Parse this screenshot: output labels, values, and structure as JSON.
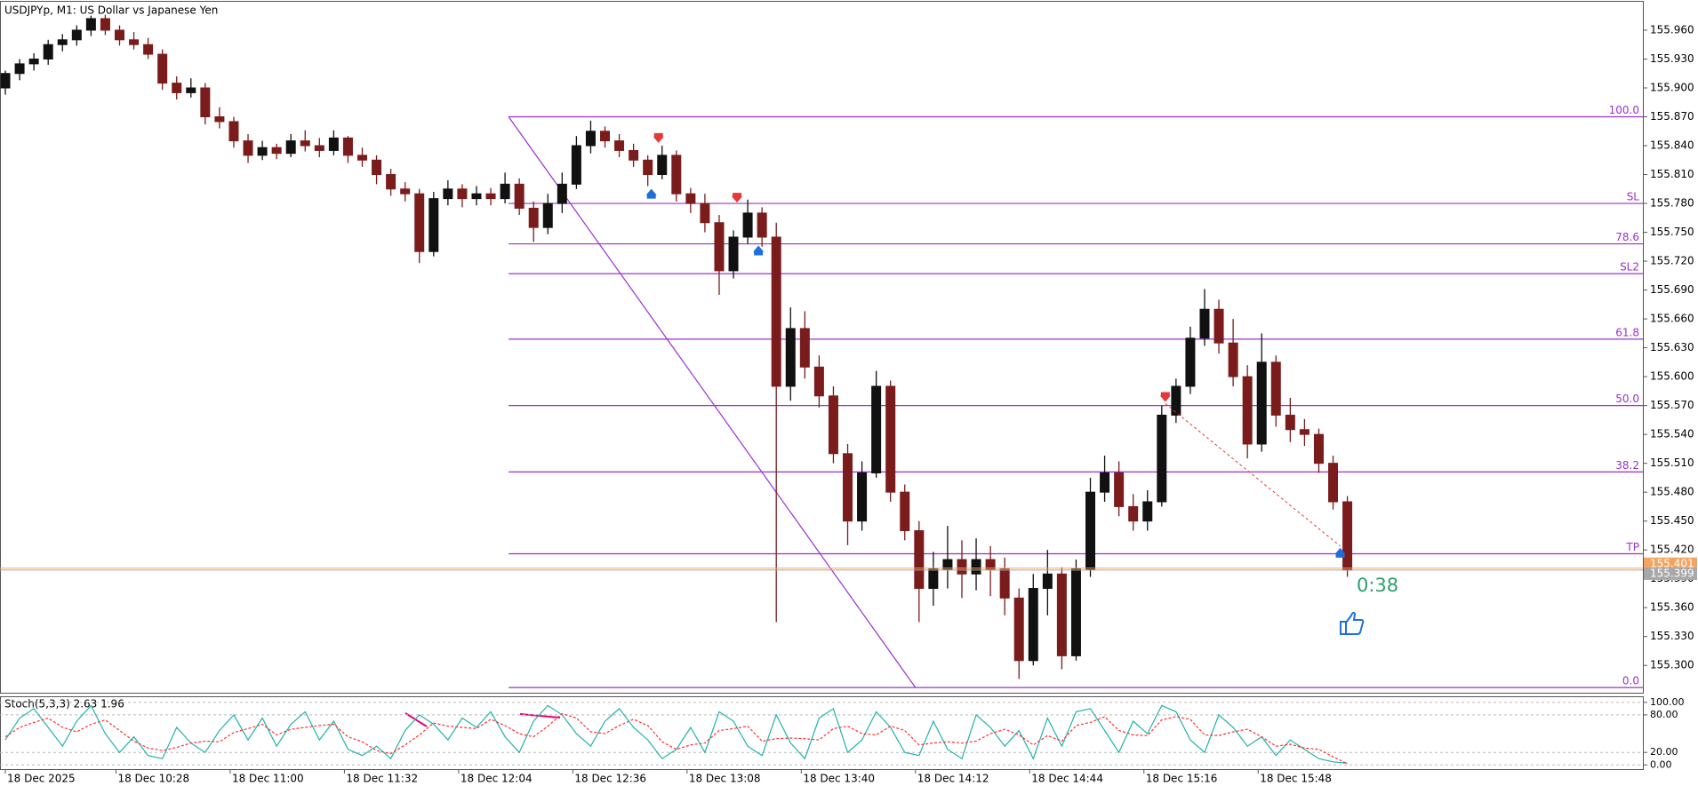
{
  "chart_data": {
    "type": "candlestick",
    "title": "USDJPYp, M1:  US Dollar vs Japanese Yen",
    "countdown": "0:38",
    "up_color": "#111111",
    "down_color": "#7a1c1c",
    "grid": false,
    "xlim": [
      -1.5,
      458.8
    ],
    "ylim": [
      155.2716,
      155.9895
    ],
    "xticks": [
      {
        "value": 0,
        "label": "18 Dec 2025"
      },
      {
        "value": 31,
        "label": "18 Dec 10:28"
      },
      {
        "value": 63,
        "label": "18 Dec 11:00"
      },
      {
        "value": 95,
        "label": "18 Dec 11:32"
      },
      {
        "value": 127,
        "label": "18 Dec 12:04"
      },
      {
        "value": 159,
        "label": "18 Dec 12:36"
      },
      {
        "value": 191,
        "label": "18 Dec 13:08"
      },
      {
        "value": 223,
        "label": "18 Dec 13:40"
      },
      {
        "value": 255,
        "label": "18 Dec 14:12"
      },
      {
        "value": 287,
        "label": "18 Dec 14:44"
      },
      {
        "value": 319,
        "label": "18 Dec 15:16"
      },
      {
        "value": 351,
        "label": "18 Dec 15:48"
      }
    ],
    "yticks": [
      {
        "value": 155.96,
        "label": "155.960"
      },
      {
        "value": 155.93,
        "label": "155.930"
      },
      {
        "value": 155.9,
        "label": "155.900"
      },
      {
        "value": 155.87,
        "label": "155.870"
      },
      {
        "value": 155.84,
        "label": "155.840"
      },
      {
        "value": 155.81,
        "label": "155.810"
      },
      {
        "value": 155.78,
        "label": "155.780"
      },
      {
        "value": 155.75,
        "label": "155.750"
      },
      {
        "value": 155.72,
        "label": "155.720"
      },
      {
        "value": 155.69,
        "label": "155.690"
      },
      {
        "value": 155.66,
        "label": "155.660"
      },
      {
        "value": 155.63,
        "label": "155.630"
      },
      {
        "value": 155.6,
        "label": "155.600"
      },
      {
        "value": 155.57,
        "label": "155.570"
      },
      {
        "value": 155.54,
        "label": "155.540"
      },
      {
        "value": 155.51,
        "label": "155.510"
      },
      {
        "value": 155.48,
        "label": "155.480"
      },
      {
        "value": 155.45,
        "label": "155.450"
      },
      {
        "value": 155.42,
        "label": "155.420"
      },
      {
        "value": 155.39,
        "label": "155.390"
      },
      {
        "value": 155.36,
        "label": "155.360"
      },
      {
        "value": 155.33,
        "label": "155.330"
      },
      {
        "value": 155.3,
        "label": "155.300"
      }
    ],
    "x": [
      0,
      4,
      8,
      12,
      16,
      20,
      24,
      28,
      32,
      36,
      40,
      44,
      48,
      52,
      56,
      60,
      64,
      68,
      72,
      76,
      80,
      84,
      88,
      92,
      96,
      100,
      104,
      108,
      112,
      116,
      120,
      124,
      128,
      132,
      136,
      140,
      144,
      148,
      152,
      156,
      160,
      164,
      168,
      172,
      176,
      180,
      184,
      188,
      192,
      196,
      200,
      204,
      208,
      212,
      216,
      220,
      224,
      228,
      232,
      236,
      240,
      244,
      248,
      252,
      256,
      260,
      264,
      268,
      272,
      276,
      280,
      284,
      288,
      292,
      296,
      300,
      304,
      308,
      312,
      316,
      320,
      324,
      328,
      332,
      336,
      340,
      344,
      348,
      352,
      356,
      360,
      364,
      368,
      372,
      376
    ],
    "ohlc": [
      [
        155.9,
        155.918,
        155.893,
        155.915
      ],
      [
        155.915,
        155.93,
        155.908,
        155.925
      ],
      [
        155.925,
        155.936,
        155.918,
        155.93
      ],
      [
        155.93,
        155.95,
        155.924,
        155.945
      ],
      [
        155.945,
        155.956,
        155.938,
        155.95
      ],
      [
        155.95,
        155.965,
        155.944,
        155.96
      ],
      [
        155.96,
        155.975,
        155.954,
        155.972
      ],
      [
        155.972,
        155.976,
        155.955,
        155.96
      ],
      [
        155.96,
        155.965,
        155.944,
        155.95
      ],
      [
        155.95,
        155.958,
        155.94,
        155.945
      ],
      [
        155.945,
        155.952,
        155.93,
        155.935
      ],
      [
        155.935,
        155.94,
        155.898,
        155.905
      ],
      [
        155.905,
        155.912,
        155.888,
        155.895
      ],
      [
        155.895,
        155.91,
        155.89,
        155.9
      ],
      [
        155.9,
        155.905,
        155.862,
        155.87
      ],
      [
        155.87,
        155.88,
        155.858,
        155.865
      ],
      [
        155.865,
        155.87,
        155.838,
        155.845
      ],
      [
        155.845,
        155.852,
        155.822,
        155.83
      ],
      [
        155.83,
        155.845,
        155.825,
        155.838
      ],
      [
        155.838,
        155.842,
        155.826,
        155.832
      ],
      [
        155.832,
        155.852,
        155.828,
        155.845
      ],
      [
        155.845,
        155.856,
        155.834,
        155.84
      ],
      [
        155.84,
        155.848,
        155.828,
        155.835
      ],
      [
        155.835,
        155.856,
        155.83,
        155.848
      ],
      [
        155.848,
        155.85,
        155.822,
        155.83
      ],
      [
        155.83,
        155.838,
        155.818,
        155.825
      ],
      [
        155.825,
        155.83,
        155.8,
        155.81
      ],
      [
        155.81,
        155.816,
        155.788,
        155.795
      ],
      [
        155.795,
        155.802,
        155.782,
        155.79
      ],
      [
        155.79,
        155.795,
        155.718,
        155.73
      ],
      [
        155.73,
        155.792,
        155.725,
        155.785
      ],
      [
        155.785,
        155.804,
        155.778,
        155.795
      ],
      [
        155.795,
        155.8,
        155.776,
        155.785
      ],
      [
        155.785,
        155.798,
        155.778,
        155.79
      ],
      [
        155.79,
        155.796,
        155.778,
        155.785
      ],
      [
        155.785,
        155.812,
        155.78,
        155.8
      ],
      [
        155.8,
        155.806,
        155.768,
        155.775
      ],
      [
        155.775,
        155.782,
        155.74,
        155.755
      ],
      [
        155.755,
        155.79,
        155.748,
        155.78
      ],
      [
        155.78,
        155.812,
        155.77,
        155.8
      ],
      [
        155.8,
        155.85,
        155.795,
        155.84
      ],
      [
        155.84,
        155.866,
        155.832,
        155.855
      ],
      [
        155.855,
        155.86,
        155.838,
        155.845
      ],
      [
        155.845,
        155.852,
        155.828,
        155.835
      ],
      [
        155.835,
        155.842,
        155.818,
        155.825
      ],
      [
        155.825,
        155.83,
        155.798,
        155.81
      ],
      [
        155.81,
        155.84,
        155.805,
        155.83
      ],
      [
        155.83,
        155.835,
        155.782,
        155.79
      ],
      [
        155.79,
        155.796,
        155.77,
        155.78
      ],
      [
        155.78,
        155.79,
        155.75,
        155.76
      ],
      [
        155.76,
        155.768,
        155.685,
        155.71
      ],
      [
        155.71,
        155.752,
        155.702,
        155.745
      ],
      [
        155.745,
        155.784,
        155.738,
        155.77
      ],
      [
        155.77,
        155.776,
        155.735,
        155.745
      ],
      [
        155.745,
        155.76,
        155.345,
        155.59
      ],
      [
        155.59,
        155.672,
        155.575,
        155.65
      ],
      [
        155.65,
        155.668,
        155.598,
        155.61
      ],
      [
        155.61,
        155.622,
        155.568,
        155.58
      ],
      [
        155.58,
        155.59,
        155.51,
        155.52
      ],
      [
        155.52,
        155.53,
        155.425,
        155.45
      ],
      [
        155.45,
        155.512,
        155.44,
        155.5
      ],
      [
        155.5,
        155.606,
        155.495,
        155.59
      ],
      [
        155.59,
        155.596,
        155.47,
        155.48
      ],
      [
        155.48,
        155.488,
        155.43,
        155.44
      ],
      [
        155.44,
        155.45,
        155.345,
        155.38
      ],
      [
        155.38,
        155.418,
        155.362,
        155.4
      ],
      [
        155.4,
        155.445,
        155.38,
        155.41
      ],
      [
        155.41,
        155.43,
        155.37,
        155.395
      ],
      [
        155.395,
        155.432,
        155.378,
        155.41
      ],
      [
        155.41,
        155.424,
        155.372,
        155.4
      ],
      [
        155.4,
        155.412,
        155.352,
        155.37
      ],
      [
        155.37,
        155.38,
        155.286,
        155.305
      ],
      [
        155.305,
        155.395,
        155.3,
        155.38
      ],
      [
        155.38,
        155.42,
        155.352,
        155.395
      ],
      [
        155.395,
        155.402,
        155.296,
        155.31
      ],
      [
        155.31,
        155.41,
        155.305,
        155.4
      ],
      [
        155.4,
        155.495,
        155.392,
        155.48
      ],
      [
        155.48,
        155.518,
        155.47,
        155.5
      ],
      [
        155.5,
        155.512,
        155.455,
        155.465
      ],
      [
        155.465,
        155.478,
        155.44,
        155.45
      ],
      [
        155.45,
        155.482,
        155.44,
        155.47
      ],
      [
        155.47,
        155.57,
        155.465,
        155.56
      ],
      [
        155.56,
        155.598,
        155.552,
        155.59
      ],
      [
        155.59,
        155.652,
        155.582,
        155.64
      ],
      [
        155.64,
        155.691,
        155.632,
        155.67
      ],
      [
        155.67,
        155.68,
        155.624,
        155.635
      ],
      [
        155.635,
        155.66,
        155.59,
        155.6
      ],
      [
        155.6,
        155.612,
        155.515,
        155.53
      ],
      [
        155.53,
        155.645,
        155.522,
        155.615
      ],
      [
        155.615,
        155.622,
        155.548,
        155.56
      ],
      [
        155.56,
        155.578,
        155.532,
        155.545
      ],
      [
        155.545,
        155.556,
        155.528,
        155.54
      ],
      [
        155.54,
        155.546,
        155.5,
        155.51
      ],
      [
        155.51,
        155.518,
        155.462,
        155.47
      ],
      [
        155.47,
        155.476,
        155.392,
        155.399
      ]
    ],
    "fib_color": "#9b30d0",
    "fib_trend": {
      "x": [
        141,
        255
      ],
      "price": [
        155.87,
        155.277
      ]
    },
    "levels": [
      {
        "label": "100.0",
        "value": 155.87
      },
      {
        "label": "SL",
        "value": 155.78
      },
      {
        "label": "78.6",
        "value": 155.738
      },
      {
        "label": "SL2",
        "value": 155.707
      },
      {
        "label": "61.8",
        "value": 155.639
      },
      {
        "label": "50.0",
        "value": 155.57
      },
      {
        "label": "38.2",
        "value": 155.501
      },
      {
        "label": "TP",
        "value": 155.416
      },
      {
        "label": "0.0",
        "value": 155.277
      }
    ],
    "markers": [
      {
        "x": 183,
        "price": 155.841,
        "color": "#e53935",
        "shape": "arrow-down"
      },
      {
        "x": 181,
        "price": 155.797,
        "color": "#1e6fd9",
        "shape": "arrow-up"
      },
      {
        "x": 205,
        "price": 155.779,
        "color": "#e53935",
        "shape": "arrow-down"
      },
      {
        "x": 211,
        "price": 155.738,
        "color": "#1e6fd9",
        "shape": "arrow-up"
      },
      {
        "x": 325,
        "price": 155.572,
        "color": "#e53935",
        "shape": "arrow-down"
      },
      {
        "x": 374,
        "price": 155.424,
        "color": "#1e6fd9",
        "shape": "arrow-up"
      }
    ],
    "price_lines": [
      {
        "value": 155.401,
        "label": "155.401",
        "color": "#f4a460"
      },
      {
        "value": 155.399,
        "label": "155.399",
        "color": "#a8a8a8"
      }
    ],
    "stoch": {
      "title": "Stoch(5,3,3) 2.63 1.96",
      "ylim": [
        -6.7,
        108.3
      ],
      "yticks": [
        {
          "value": 100,
          "label": "100.00"
        },
        {
          "value": 80,
          "label": "80.00"
        },
        {
          "value": 20,
          "label": "20.00"
        },
        {
          "value": 0,
          "label": "0.00"
        }
      ],
      "series": [
        {
          "color": "#20b2aa",
          "dash": false,
          "values": [
            40,
            75,
            90,
            60,
            30,
            70,
            95,
            50,
            20,
            45,
            15,
            10,
            60,
            35,
            20,
            55,
            80,
            40,
            75,
            30,
            65,
            85,
            40,
            70,
            25,
            15,
            30,
            10,
            55,
            80,
            65,
            40,
            75,
            60,
            85,
            45,
            20,
            70,
            95,
            80,
            50,
            30,
            70,
            90,
            60,
            40,
            10,
            25,
            60,
            20,
            85,
            70,
            30,
            15,
            80,
            35,
            10,
            75,
            90,
            20,
            40,
            85,
            60,
            20,
            15,
            70,
            25,
            10,
            80,
            60,
            30,
            55,
            10,
            75,
            30,
            85,
            90,
            55,
            20,
            70,
            50,
            95,
            85,
            40,
            20,
            80,
            60,
            30,
            45,
            15,
            40,
            25,
            10,
            5,
            2.63
          ]
        },
        {
          "color": "#ff3030",
          "dash": true,
          "values": [
            45,
            60,
            68,
            75,
            60,
            53,
            65,
            72,
            55,
            38,
            27,
            23,
            28,
            35,
            38,
            37,
            52,
            58,
            65,
            48,
            57,
            60,
            63,
            65,
            45,
            37,
            23,
            18,
            32,
            48,
            67,
            62,
            60,
            58,
            73,
            63,
            50,
            45,
            62,
            82,
            75,
            53,
            50,
            63,
            73,
            63,
            37,
            25,
            32,
            35,
            55,
            58,
            62,
            38,
            42,
            43,
            42,
            40,
            58,
            62,
            50,
            48,
            62,
            55,
            32,
            35,
            37,
            35,
            38,
            50,
            57,
            48,
            32,
            47,
            38,
            63,
            68,
            77,
            55,
            48,
            47,
            72,
            77,
            73,
            48,
            47,
            53,
            57,
            45,
            30,
            33,
            27,
            25,
            13,
            1.96
          ]
        }
      ]
    }
  }
}
